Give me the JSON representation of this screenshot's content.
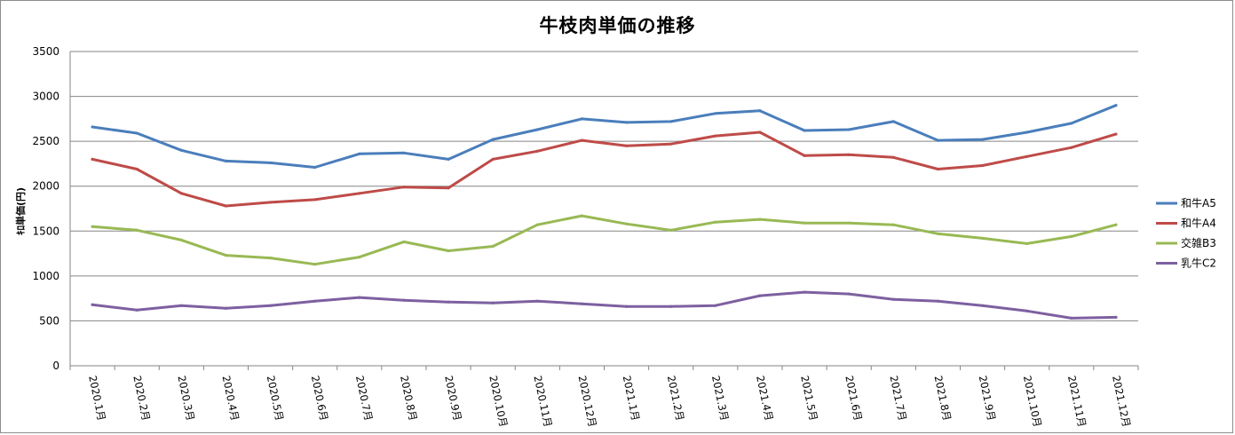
{
  "chart_data": {
    "type": "line",
    "title": "牛枝肉単価の推移",
    "ylabel": "ｷﾛ単価(円)",
    "xlabel": "",
    "ylim": [
      0,
      3500
    ],
    "yticks": [
      0,
      500,
      1000,
      1500,
      2000,
      2500,
      3000,
      3500
    ],
    "grid": true,
    "legend_position": "right",
    "categories": [
      "2020.1月",
      "2020.2月",
      "2020.3月",
      "2020.4月",
      "2020.5月",
      "2020.6月",
      "2020.7月",
      "2020.8月",
      "2020.9月",
      "2020.10月",
      "2020.11月",
      "2020.12月",
      "2021.1月",
      "2021.2月",
      "2021.3月",
      "2021.4月",
      "2021.5月",
      "2021.6月",
      "2021.7月",
      "2021.8月",
      "2021.9月",
      "2021.10月",
      "2021.11月",
      "2021.12月"
    ],
    "series": [
      {
        "name": "和牛A5",
        "color": "#4a7ebb",
        "values": [
          2660,
          2590,
          2400,
          2280,
          2260,
          2210,
          2360,
          2370,
          2300,
          2520,
          2630,
          2750,
          2710,
          2720,
          2810,
          2840,
          2620,
          2630,
          2720,
          2510,
          2520,
          2600,
          2700,
          2900
        ]
      },
      {
        "name": "和牛A4",
        "color": "#be4b48",
        "values": [
          2300,
          2190,
          1920,
          1780,
          1820,
          1850,
          1920,
          1990,
          1980,
          2300,
          2390,
          2510,
          2450,
          2470,
          2560,
          2600,
          2340,
          2350,
          2320,
          2190,
          2230,
          2330,
          2430,
          2580
        ]
      },
      {
        "name": "交雑B3",
        "color": "#98b954",
        "values": [
          1550,
          1510,
          1400,
          1230,
          1200,
          1130,
          1210,
          1380,
          1280,
          1330,
          1570,
          1670,
          1580,
          1510,
          1600,
          1630,
          1590,
          1590,
          1570,
          1470,
          1420,
          1360,
          1440,
          1570
        ]
      },
      {
        "name": "乳牛C2",
        "color": "#7d60a0",
        "values": [
          680,
          620,
          670,
          640,
          670,
          720,
          760,
          730,
          710,
          700,
          720,
          690,
          660,
          660,
          670,
          780,
          820,
          800,
          740,
          720,
          670,
          610,
          530,
          540
        ]
      }
    ]
  }
}
